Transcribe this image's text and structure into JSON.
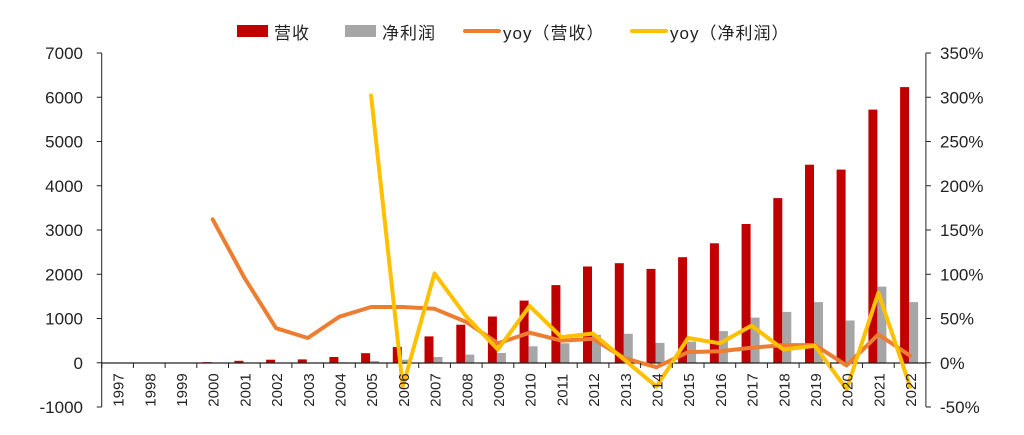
{
  "chart_data": {
    "type": "bar+line",
    "title": "",
    "categories": [
      "1997",
      "1998",
      "1999",
      "2000",
      "2001",
      "2002",
      "2003",
      "2004",
      "2005",
      "2006",
      "2007",
      "2008",
      "2009",
      "2010",
      "2011",
      "2012",
      "2013",
      "2014",
      "2015",
      "2016",
      "2017",
      "2018",
      "2019",
      "2020",
      "2021",
      "2022"
    ],
    "series": [
      {
        "name": "营收",
        "type": "bar",
        "axis": "left",
        "color": "#C00000",
        "values": [
          0,
          0,
          0,
          15,
          45,
          70,
          75,
          130,
          215,
          355,
          595,
          860,
          1045,
          1405,
          1755,
          2175,
          2250,
          2120,
          2385,
          2700,
          3135,
          3720,
          4475,
          4365,
          5720,
          6230
        ]
      },
      {
        "name": "净利润",
        "type": "bar",
        "axis": "left",
        "color": "#A6A6A6",
        "values": [
          0,
          0,
          0,
          0,
          5,
          5,
          5,
          10,
          40,
          70,
          130,
          185,
          220,
          372,
          440,
          630,
          655,
          448,
          478,
          715,
          1020,
          1150,
          1370,
          955,
          1720,
          1370
        ]
      },
      {
        "name": "yoy（营收）",
        "type": "line",
        "axis": "right",
        "unit": "%",
        "color": "#ED7D31",
        "values": [
          null,
          null,
          null,
          162,
          96,
          39,
          28,
          52,
          63,
          63,
          61,
          46,
          22,
          34,
          25,
          27,
          5,
          -5,
          12,
          13,
          17,
          20,
          20,
          -3,
          32,
          8
        ]
      },
      {
        "name": "yoy（净利润）",
        "type": "line",
        "axis": "right",
        "unit": "%",
        "color": "#FFC000",
        "values": [
          null,
          null,
          null,
          null,
          null,
          null,
          null,
          null,
          302,
          -27,
          101,
          52,
          15,
          64,
          29,
          33,
          3,
          -27,
          28,
          22,
          42,
          15,
          19,
          -30,
          79,
          -27
        ]
      }
    ],
    "xlabel": "",
    "ylabel_left": "",
    "ylabel_right": "",
    "ylim_left": [
      -1000,
      7000
    ],
    "yticks_left": [
      -1000,
      0,
      1000,
      2000,
      3000,
      4000,
      5000,
      6000,
      7000
    ],
    "ylim_right": [
      -50,
      350
    ],
    "yticks_right": [
      "-50%",
      "0%",
      "50%",
      "100%",
      "150%",
      "200%",
      "250%",
      "300%",
      "350%"
    ],
    "grid": false,
    "legend_position": "top"
  },
  "legend": {
    "items": [
      {
        "label": "营收",
        "kind": "bar",
        "color": "#C00000"
      },
      {
        "label": "净利润",
        "kind": "bar",
        "color": "#A6A6A6"
      },
      {
        "label": "yoy（营收）",
        "kind": "line",
        "color": "#ED7D31"
      },
      {
        "label": "yoy（净利润）",
        "kind": "line",
        "color": "#FFC000"
      }
    ]
  }
}
